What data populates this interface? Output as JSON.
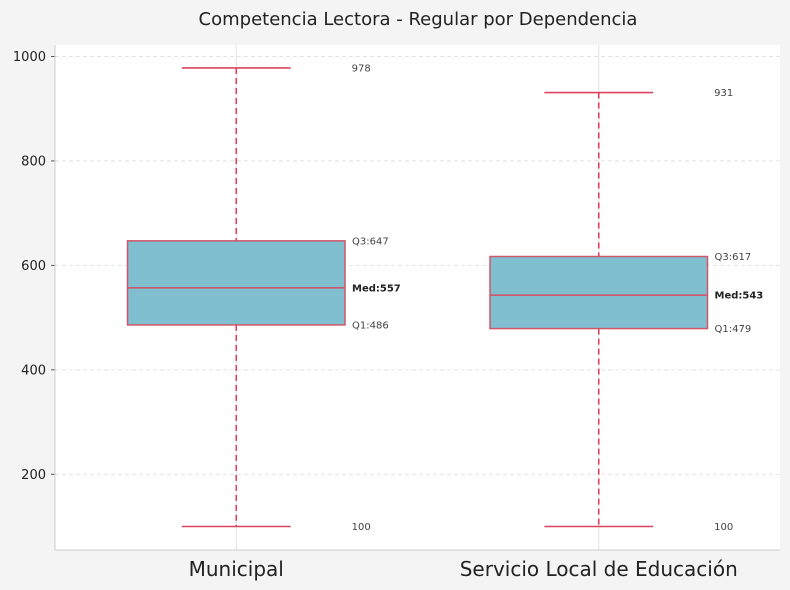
{
  "chart_data": {
    "type": "box",
    "title": "Competencia Lectora - Regular por Dependencia",
    "xlabel": "",
    "ylabel": "",
    "ylim": [
      55,
      1022
    ],
    "yticks": [
      200,
      400,
      600,
      800,
      1000
    ],
    "grid": true,
    "categories": [
      "Municipal",
      "Servicio Local de Educación"
    ],
    "boxes": [
      {
        "category": "Municipal",
        "min": 100,
        "q1": 486,
        "median": 557,
        "q3": 647,
        "max": 978,
        "labels": {
          "max": "978",
          "q3": "Q3:647",
          "median": "Med:557",
          "q1": "Q1:486",
          "min": "100"
        }
      },
      {
        "category": "Servicio Local de Educación",
        "min": 100,
        "q1": 479,
        "median": 543,
        "q3": 617,
        "max": 931,
        "labels": {
          "max": "931",
          "q3": "Q3:617",
          "median": "Med:543",
          "q1": "Q1:479",
          "min": "100"
        }
      }
    ],
    "colors": {
      "box_fill": "#7fbfcf",
      "box_edge": "#d0566a",
      "whisker": "#d9455f",
      "grid": "#e2e2e2",
      "axis": "#cccccc"
    }
  }
}
